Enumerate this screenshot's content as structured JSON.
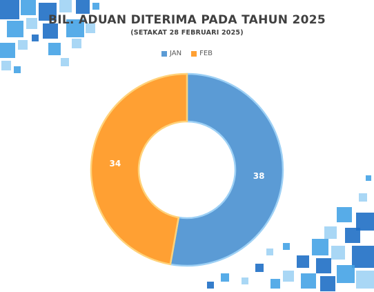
{
  "chart_data": {
    "type": "pie",
    "style": "doughnut",
    "title": "BIL. ADUAN DITERIMA PADA TAHUN 2025",
    "subtitle": "(SETAKAT 28 FEBRUARI 2025)",
    "categories": [
      "JAN",
      "FEB"
    ],
    "values": [
      38,
      34
    ],
    "data_labels": [
      "38",
      "34"
    ],
    "colors": [
      "#5B9BD5",
      "#FFA033"
    ],
    "legend_position": "top",
    "data_labels_shown": true
  },
  "decoration": {
    "pattern": "blue squares",
    "colors": [
      "#1F6FC5",
      "#45A3E5",
      "#8CC9F2"
    ]
  }
}
